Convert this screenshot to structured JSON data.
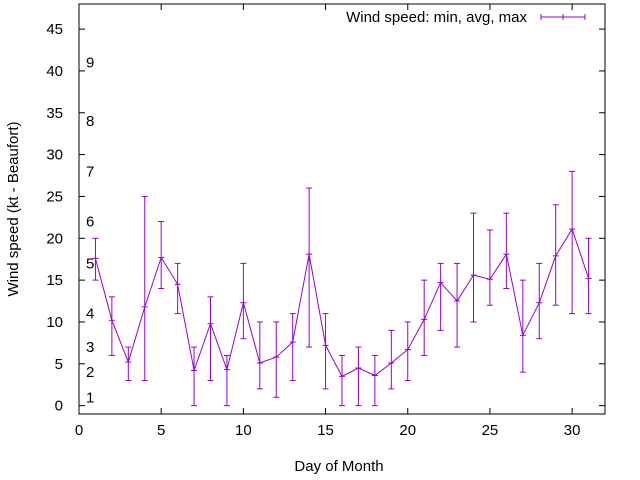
{
  "chart_data": {
    "type": "line",
    "xlabel": "Day of Month",
    "ylabel": "Wind speed (kt - Beaufort)",
    "xlim": [
      0,
      32
    ],
    "ylim": [
      -1,
      48
    ],
    "x_ticks": [
      "0",
      "5",
      "10",
      "15",
      "20",
      "25",
      "30"
    ],
    "y_ticks": [
      "0",
      "5",
      "10",
      "15",
      "20",
      "25",
      "30",
      "35",
      "40",
      "45"
    ],
    "beaufort_labels": [
      {
        "label": "1",
        "y": 1
      },
      {
        "label": "2",
        "y": 4
      },
      {
        "label": "3",
        "y": 7
      },
      {
        "label": "4",
        "y": 11
      },
      {
        "label": "5",
        "y": 17
      },
      {
        "label": "6",
        "y": 22
      },
      {
        "label": "7",
        "y": 28
      },
      {
        "label": "8",
        "y": 34
      },
      {
        "label": "9",
        "y": 41
      }
    ],
    "legend_position": "top-right",
    "grid": false,
    "series": [
      {
        "name": "Wind speed: min, avg, max",
        "color": "#9400d3",
        "points": [
          {
            "x": 1,
            "min": 15,
            "avg": 17.6,
            "max": 20
          },
          {
            "x": 2,
            "min": 6,
            "avg": 10.2,
            "max": 13
          },
          {
            "x": 3,
            "min": 3,
            "avg": 5.2,
            "max": 7
          },
          {
            "x": 4,
            "min": 3,
            "avg": 11.8,
            "max": 25
          },
          {
            "x": 5,
            "min": 14,
            "avg": 17.7,
            "max": 22
          },
          {
            "x": 6,
            "min": 11,
            "avg": 14.5,
            "max": 17
          },
          {
            "x": 7,
            "min": 0,
            "avg": 4.2,
            "max": 7
          },
          {
            "x": 8,
            "min": 3,
            "avg": 9.8,
            "max": 13
          },
          {
            "x": 9,
            "min": 0,
            "avg": 4.3,
            "max": 6
          },
          {
            "x": 10,
            "min": 8,
            "avg": 12.3,
            "max": 17
          },
          {
            "x": 11,
            "min": 2,
            "avg": 5.1,
            "max": 10
          },
          {
            "x": 12,
            "min": 1,
            "avg": 5.8,
            "max": 10
          },
          {
            "x": 13,
            "min": 3,
            "avg": 7.6,
            "max": 11
          },
          {
            "x": 14,
            "min": 7,
            "avg": 18.1,
            "max": 26
          },
          {
            "x": 15,
            "min": 2,
            "avg": 7.2,
            "max": 11
          },
          {
            "x": 16,
            "min": 0,
            "avg": 3.5,
            "max": 6
          },
          {
            "x": 17,
            "min": 0,
            "avg": 4.5,
            "max": 7
          },
          {
            "x": 18,
            "min": 0,
            "avg": 3.6,
            "max": 6
          },
          {
            "x": 19,
            "min": 2,
            "avg": 5.1,
            "max": 9
          },
          {
            "x": 20,
            "min": 3,
            "avg": 6.7,
            "max": 10
          },
          {
            "x": 21,
            "min": 6,
            "avg": 10.3,
            "max": 15
          },
          {
            "x": 22,
            "min": 9,
            "avg": 14.7,
            "max": 17
          },
          {
            "x": 23,
            "min": 7,
            "avg": 12.5,
            "max": 17
          },
          {
            "x": 24,
            "min": 10,
            "avg": 15.6,
            "max": 23
          },
          {
            "x": 25,
            "min": 12,
            "avg": 15.1,
            "max": 21
          },
          {
            "x": 26,
            "min": 14,
            "avg": 18.1,
            "max": 23
          },
          {
            "x": 27,
            "min": 4,
            "avg": 8.4,
            "max": 15
          },
          {
            "x": 28,
            "min": 8,
            "avg": 12.3,
            "max": 17
          },
          {
            "x": 29,
            "min": 12,
            "avg": 17.9,
            "max": 24
          },
          {
            "x": 30,
            "min": 11,
            "avg": 21.1,
            "max": 28
          },
          {
            "x": 31,
            "min": 11,
            "avg": 15.2,
            "max": 20
          }
        ]
      }
    ]
  }
}
